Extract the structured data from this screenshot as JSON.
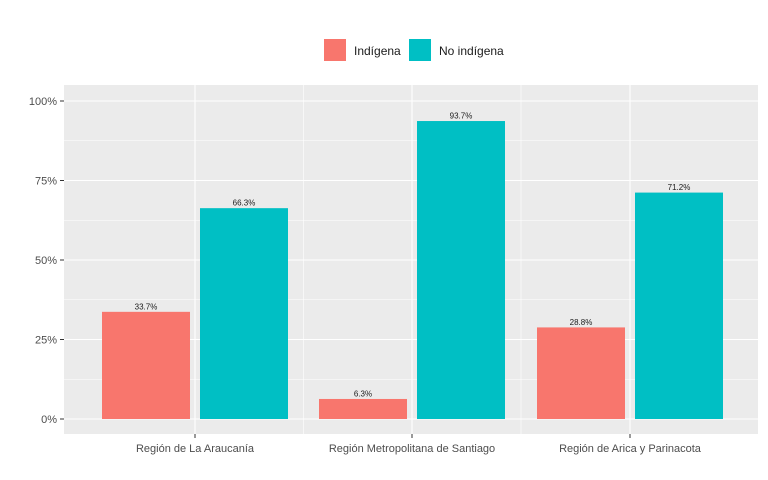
{
  "chart_data": {
    "type": "bar",
    "categories": [
      "Región de La Araucanía",
      "Región Metropolitana de Santiago",
      "Región de Arica y Parinacota"
    ],
    "series": [
      {
        "name": "Indígena",
        "color": "#F8766D",
        "values": [
          33.7,
          6.3,
          28.8
        ],
        "labels": [
          "33.7%",
          "6.3%",
          "28.8%"
        ]
      },
      {
        "name": "No indígena",
        "color": "#00BFC4",
        "values": [
          66.3,
          93.7,
          71.2
        ],
        "labels": [
          "66.3%",
          "93.7%",
          "71.2%"
        ]
      }
    ],
    "ylim": [
      0,
      100
    ],
    "yticks": [
      0,
      25,
      50,
      75,
      100
    ],
    "ytick_labels": [
      "0%",
      "25%",
      "50%",
      "75%",
      "100%"
    ],
    "legend_position": "top",
    "grid": true,
    "panel_background": "#EBEBEB"
  }
}
